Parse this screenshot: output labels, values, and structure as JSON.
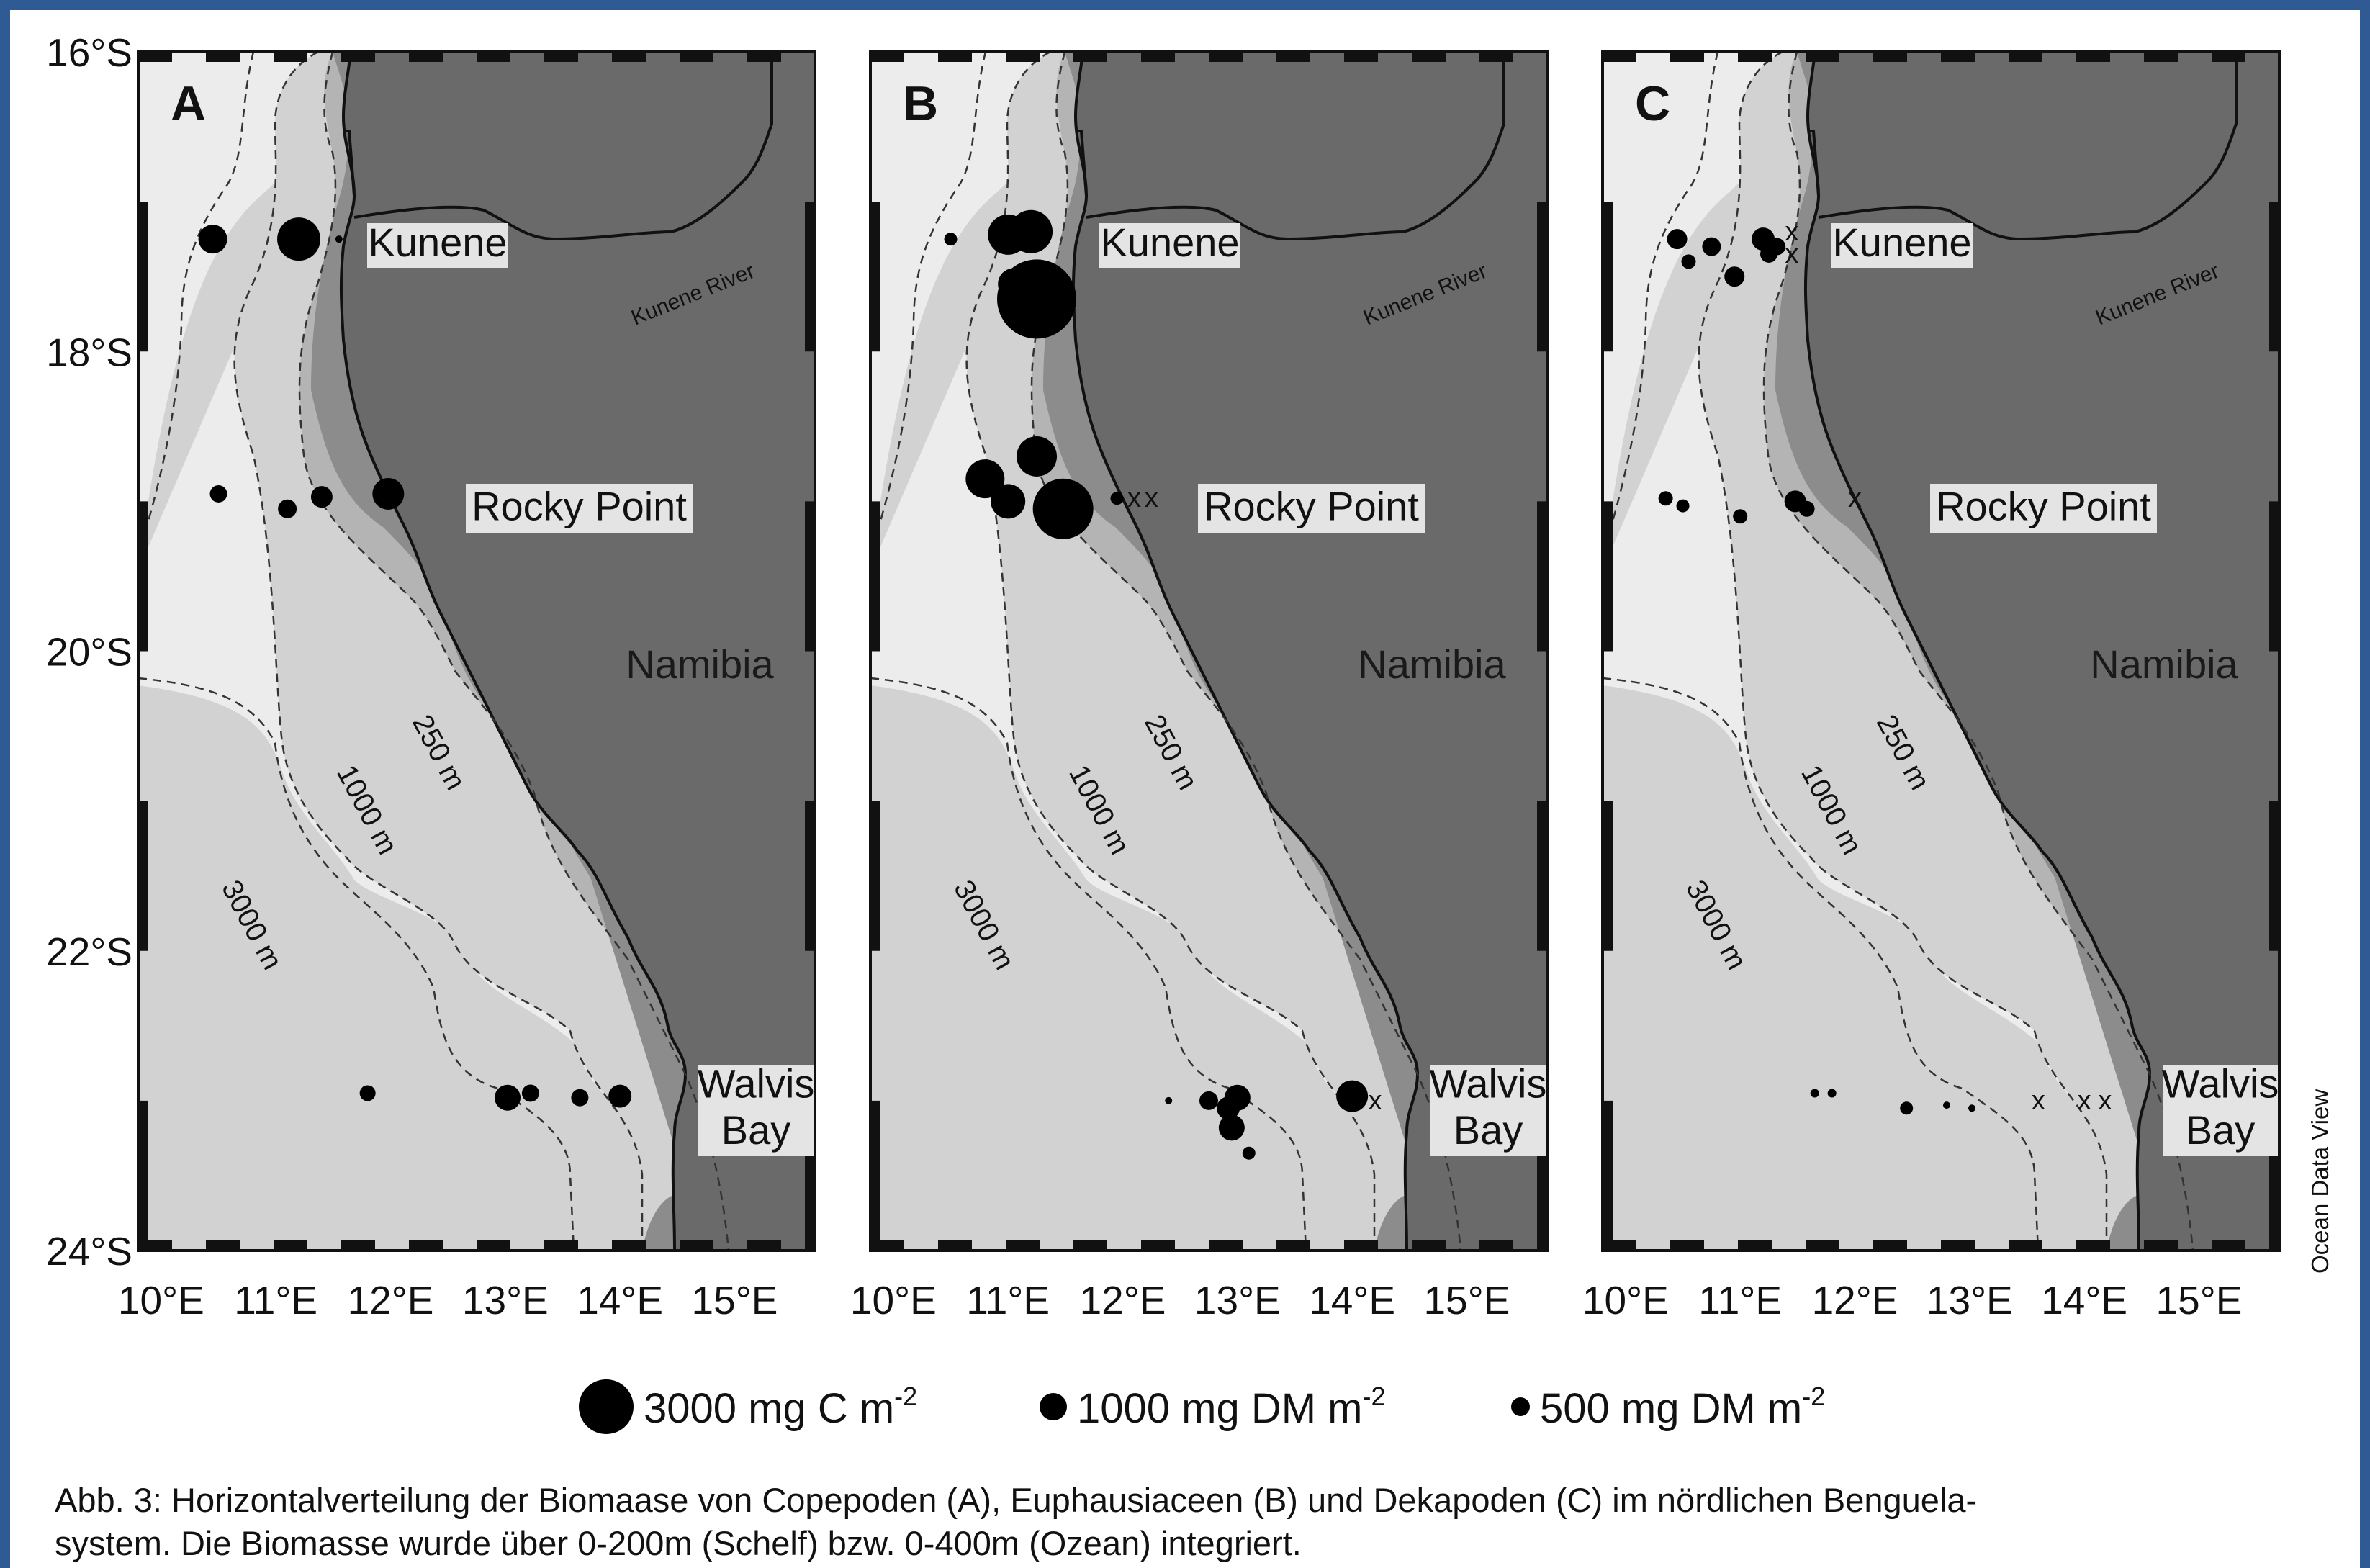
{
  "panels": [
    {
      "id": "A",
      "letter": "A"
    },
    {
      "id": "B",
      "letter": "B"
    },
    {
      "id": "C",
      "letter": "C"
    }
  ],
  "place_labels": {
    "kunene": "Kunene",
    "rocky_point": "Rocky Point",
    "namibia": "Namibia",
    "walvis_line1": "Walvis",
    "walvis_line2": "Bay",
    "kunene_river": "Kunene River"
  },
  "depth_labels": {
    "d250": "250 m",
    "d1000": "1000 m",
    "d3000": "3000 m"
  },
  "lat_labels": [
    "16°S",
    "18°S",
    "20°S",
    "22°S",
    "24°S"
  ],
  "lon_labels": [
    "10°E",
    "11°E",
    "12°E",
    "13°E",
    "14°E",
    "15°E"
  ],
  "legend": [
    {
      "label": "3000 mg C m",
      "sup": "-2",
      "size": "large"
    },
    {
      "label": "1000 mg DM m",
      "sup": "-2",
      "size": "medium"
    },
    {
      "label": "500 mg DM m",
      "sup": "-2",
      "size": "small"
    }
  ],
  "caption": {
    "line1": "Abb. 3: Horizontalverteilung der Biomaase von Copepoden (A), Euphausiaceen (B) und Dekapoden (C) im nördlichen Benguela-",
    "line2": "system. Die Biomasse wurde über 0-200m (Schelf) bzw. 0-400m (Ozean) integriert."
  },
  "credit": "Ocean Data View",
  "colors": {
    "land": "#6a6a6a",
    "shelf": "#8c8c8c",
    "slope": "#b4b4b4",
    "mid": "#d2d2d2",
    "deep": "#ececec",
    "frame_border": "#2f5a94"
  },
  "stations": {
    "A": [
      {
        "lon": 10.45,
        "lat": -17.25,
        "r": 20
      },
      {
        "lon": 11.2,
        "lat": -17.25,
        "r": 30
      },
      {
        "lon": 11.55,
        "lat": -17.25,
        "r": 5
      },
      {
        "lon": 10.5,
        "lat": -18.95,
        "r": 12
      },
      {
        "lon": 11.1,
        "lat": -19.05,
        "r": 13
      },
      {
        "lon": 11.4,
        "lat": -18.97,
        "r": 15
      },
      {
        "lon": 11.98,
        "lat": -18.95,
        "r": 22
      },
      {
        "lon": 11.8,
        "lat": -22.95,
        "r": 11
      },
      {
        "lon": 13.02,
        "lat": -22.98,
        "r": 18
      },
      {
        "lon": 13.22,
        "lat": -22.95,
        "r": 12
      },
      {
        "lon": 13.65,
        "lat": -22.98,
        "r": 12
      },
      {
        "lon": 14.0,
        "lat": -22.97,
        "r": 16
      }
    ],
    "B": [
      {
        "lon": 10.5,
        "lat": -17.25,
        "r": 9
      },
      {
        "lon": 11.0,
        "lat": -17.22,
        "r": 28
      },
      {
        "lon": 11.2,
        "lat": -17.2,
        "r": 30
      },
      {
        "lon": 11.25,
        "lat": -17.65,
        "r": 55
      },
      {
        "lon": 11.05,
        "lat": -17.55,
        "r": 22
      },
      {
        "lon": 10.8,
        "lat": -18.85,
        "r": 27
      },
      {
        "lon": 11.0,
        "lat": -19.0,
        "r": 24
      },
      {
        "lon": 11.25,
        "lat": -18.7,
        "r": 28
      },
      {
        "lon": 11.48,
        "lat": -19.05,
        "r": 42
      },
      {
        "lon": 11.95,
        "lat": -18.98,
        "r": 9
      },
      {
        "lon": 12.4,
        "lat": -23.0,
        "r": 5
      },
      {
        "lon": 12.75,
        "lat": -23.0,
        "r": 13
      },
      {
        "lon": 12.92,
        "lat": -23.05,
        "r": 16
      },
      {
        "lon": 13.0,
        "lat": -22.98,
        "r": 18
      },
      {
        "lon": 12.95,
        "lat": -23.18,
        "r": 18
      },
      {
        "lon": 13.1,
        "lat": -23.35,
        "r": 9
      },
      {
        "lon": 14.0,
        "lat": -22.97,
        "r": 22
      }
    ],
    "C": [
      {
        "lon": 10.45,
        "lat": -17.25,
        "r": 14
      },
      {
        "lon": 10.55,
        "lat": -17.4,
        "r": 10
      },
      {
        "lon": 10.75,
        "lat": -17.3,
        "r": 13
      },
      {
        "lon": 10.95,
        "lat": -17.5,
        "r": 14
      },
      {
        "lon": 11.2,
        "lat": -17.25,
        "r": 16
      },
      {
        "lon": 11.25,
        "lat": -17.35,
        "r": 12
      },
      {
        "lon": 11.32,
        "lat": -17.3,
        "r": 12
      },
      {
        "lon": 10.35,
        "lat": -18.98,
        "r": 10
      },
      {
        "lon": 10.5,
        "lat": -19.03,
        "r": 9
      },
      {
        "lon": 11.0,
        "lat": -19.1,
        "r": 10
      },
      {
        "lon": 11.48,
        "lat": -19.0,
        "r": 15
      },
      {
        "lon": 11.58,
        "lat": -19.05,
        "r": 11
      },
      {
        "lon": 11.65,
        "lat": -22.95,
        "r": 6
      },
      {
        "lon": 11.8,
        "lat": -22.95,
        "r": 6
      },
      {
        "lon": 12.45,
        "lat": -23.05,
        "r": 9
      },
      {
        "lon": 12.8,
        "lat": -23.03,
        "r": 5
      },
      {
        "lon": 13.02,
        "lat": -23.05,
        "r": 5
      }
    ]
  },
  "crosses": {
    "A": [],
    "B": [
      {
        "lon": 12.1,
        "lat": -18.98
      },
      {
        "lon": 12.25,
        "lat": -18.98
      },
      {
        "lon": 14.2,
        "lat": -23.0
      }
    ],
    "C": [
      {
        "lon": 11.45,
        "lat": -17.2
      },
      {
        "lon": 11.45,
        "lat": -17.35
      },
      {
        "lon": 12.0,
        "lat": -18.98
      },
      {
        "lon": 13.6,
        "lat": -23.0
      },
      {
        "lon": 14.0,
        "lat": -23.0
      },
      {
        "lon": 14.18,
        "lat": -23.0
      }
    ]
  }
}
